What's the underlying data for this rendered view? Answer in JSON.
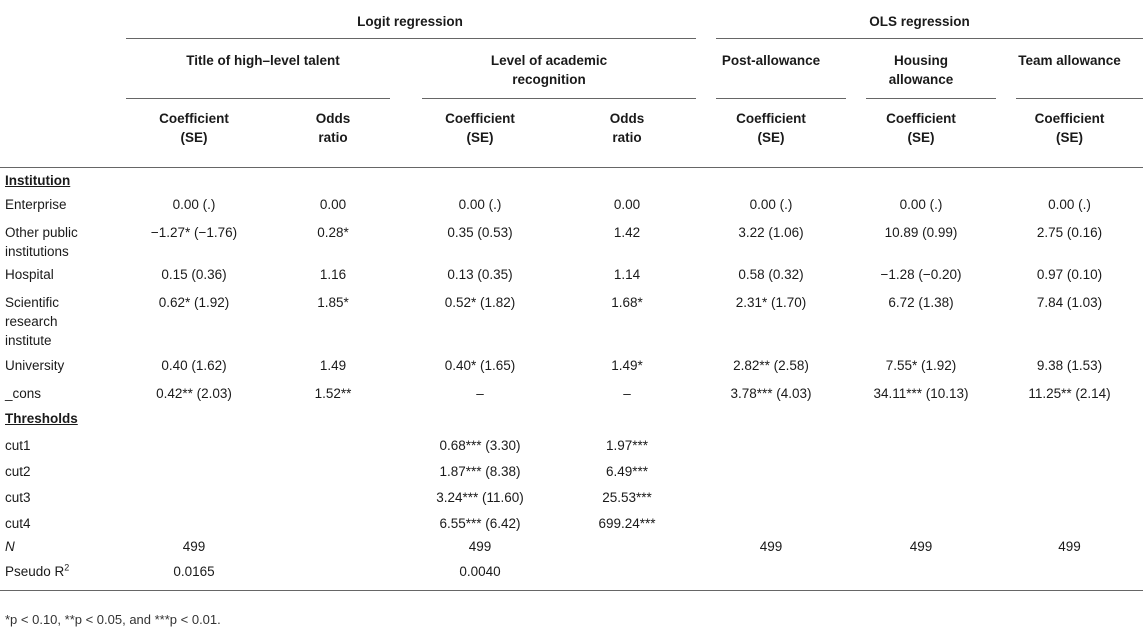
{
  "header": {
    "group1": "Logit regression",
    "group2": "OLS regression",
    "sub1": "Title of high–level talent",
    "sub2_line1": "Level of academic",
    "sub2_line2": "recognition",
    "sub3": "Post-allowance",
    "sub4_line1": "Housing",
    "sub4_line2": "allowance",
    "sub5": "Team allowance",
    "coef_line1": "Coefficient",
    "coef_line2": "(SE)",
    "odds_line1": "Odds",
    "odds_line2": "ratio"
  },
  "sections": {
    "institution": "Institution",
    "thresholds": "Thresholds"
  },
  "rows_institution": [
    {
      "label": "Enterprise",
      "label2": "",
      "label3": "",
      "c1": "0.00 (.)",
      "c2": "0.00",
      "c3": "0.00 (.)",
      "c4": "0.00",
      "c5": "0.00 (.)",
      "c6": "0.00 (.)",
      "c7": "0.00 (.)"
    },
    {
      "label": "Other public",
      "label2": "institutions",
      "label3": "",
      "c1": "−1.27* (−1.76)",
      "c2": "0.28*",
      "c3": "0.35 (0.53)",
      "c4": "1.42",
      "c5": "3.22 (1.06)",
      "c6": "10.89 (0.99)",
      "c7": "2.75 (0.16)"
    },
    {
      "label": "Hospital",
      "label2": "",
      "label3": "",
      "c1": "0.15 (0.36)",
      "c2": "1.16",
      "c3": "0.13 (0.35)",
      "c4": "1.14",
      "c5": "0.58 (0.32)",
      "c6": "−1.28 (−0.20)",
      "c7": "0.97 (0.10)"
    },
    {
      "label": "Scientific",
      "label2": "research",
      "label3": "institute",
      "c1": "0.62* (1.92)",
      "c2": "1.85*",
      "c3": "0.52* (1.82)",
      "c4": "1.68*",
      "c5": "2.31* (1.70)",
      "c6": "6.72 (1.38)",
      "c7": "7.84 (1.03)"
    },
    {
      "label": "University",
      "label2": "",
      "label3": "",
      "c1": "0.40 (1.62)",
      "c2": "1.49",
      "c3": "0.40* (1.65)",
      "c4": "1.49*",
      "c5": "2.82** (2.58)",
      "c6": "7.55* (1.92)",
      "c7": "9.38 (1.53)"
    },
    {
      "label": "_cons",
      "label2": "",
      "label3": "",
      "c1": "0.42** (2.03)",
      "c2": "1.52**",
      "c3": "–",
      "c4": "–",
      "c5": "3.78*** (4.03)",
      "c6": "34.11*** (10.13)",
      "c7": "11.25** (2.14)"
    }
  ],
  "rows_thresholds": [
    {
      "label": "cut1",
      "c3": "0.68*** (3.30)",
      "c4": "1.97***"
    },
    {
      "label": "cut2",
      "c3": "1.87*** (8.38)",
      "c4": "6.49***"
    },
    {
      "label": "cut3",
      "c3": "3.24*** (11.60)",
      "c4": "25.53***"
    },
    {
      "label": "cut4",
      "c3": "6.55*** (6.42)",
      "c4": "699.24***"
    }
  ],
  "row_n": {
    "label": "N",
    "c1": "499",
    "c3": "499",
    "c5": "499",
    "c6": "499",
    "c7": "499"
  },
  "row_pseudo": {
    "label": "Pseudo R",
    "sup": "2",
    "c1": "0.0165",
    "c3": "0.0040"
  },
  "footnote": "*p < 0.10, **p < 0.05, and ***p < 0.01."
}
